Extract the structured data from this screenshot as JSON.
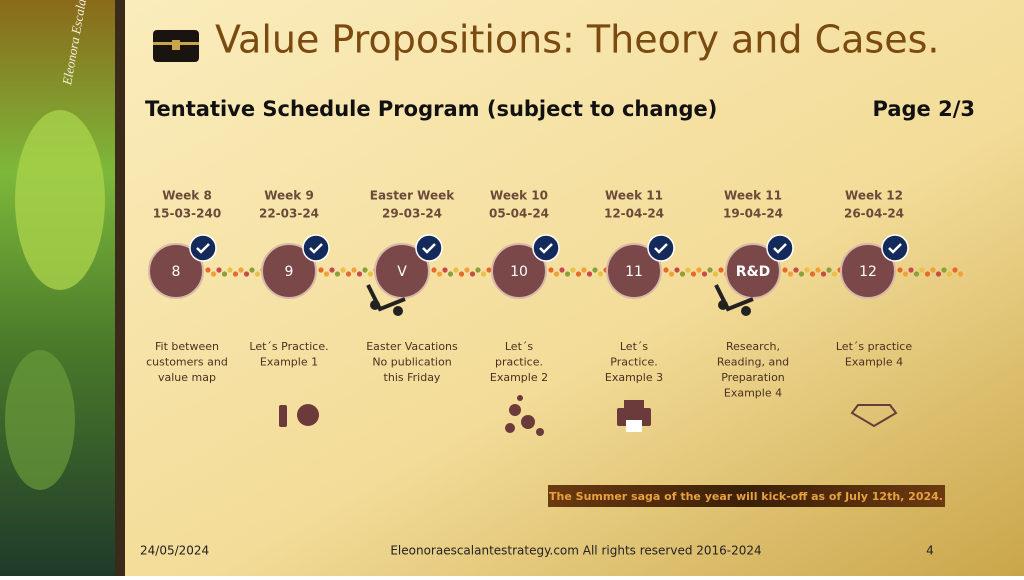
{
  "header": {
    "title": "Value Propositions: Theory and Cases.",
    "subtitle": "Tentative Schedule Program (subject to change)",
    "page": "Page 2/3"
  },
  "sidebar": {
    "signature": "Eleonora Escalante"
  },
  "weeks": [
    {
      "label": "Week 8",
      "date": "15-03-240",
      "circle": "8",
      "description": [
        "Fit between",
        "customers and",
        "value map"
      ]
    },
    {
      "label": "Week 9",
      "date": "22-03-24",
      "circle": "9",
      "description": [
        "Let´s Practice.",
        "Example 1"
      ]
    },
    {
      "label": "Easter Week",
      "date": "29-03-24",
      "circle": "V",
      "description": [
        "Easter Vacations",
        "No publication",
        "this Friday"
      ]
    },
    {
      "label": "Week 10",
      "date": "05-04-24",
      "circle": "10",
      "description": [
        "Let´s",
        "practice.",
        "Example 2"
      ]
    },
    {
      "label": "Week 11",
      "date": "12-04-24",
      "circle": "11",
      "description": [
        "Let´s",
        "Practice.",
        "Example 3"
      ]
    },
    {
      "label": "Week 11",
      "date": "19-04-24",
      "circle": "R&D",
      "description": [
        "Research,",
        "Reading, and",
        "Preparation",
        "Example 4"
      ]
    },
    {
      "label": "Week 12",
      "date": "26-04-24",
      "circle": "12",
      "description": [
        "Let´s practice",
        "Example 4"
      ]
    }
  ],
  "banner": "The Summer saga of the year will kick-off as of July 12th, 2024.",
  "footer": {
    "date": "24/05/2024",
    "copyright": "Eleonoraescalantestrategy.com  All rights reserved 2016-2024",
    "number": "4"
  }
}
